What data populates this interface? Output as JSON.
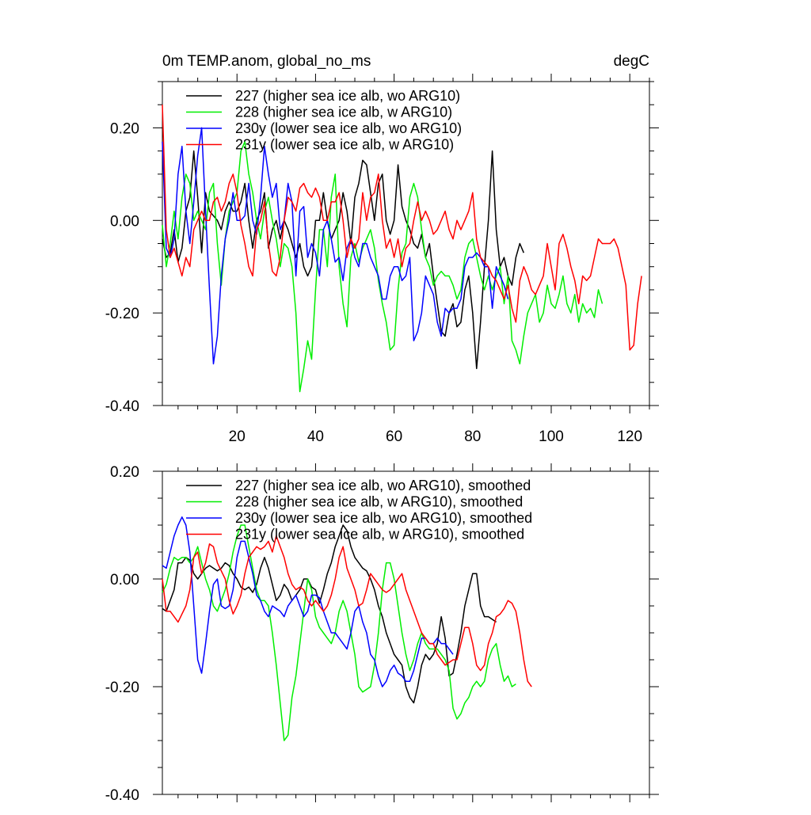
{
  "chart_data": [
    {
      "type": "line",
      "title": "0m TEMP.anom, global_no_ms",
      "units": "degC",
      "xlim": [
        1,
        125
      ],
      "ylim": [
        -0.4,
        0.3
      ],
      "x_ticks": [
        20,
        40,
        60,
        80,
        100,
        120
      ],
      "x_tick_labels": [
        "20",
        "40",
        "60",
        "80",
        "100",
        "120"
      ],
      "y_ticks": [
        -0.4,
        -0.2,
        0.0,
        0.2
      ],
      "y_tick_labels": [
        "-0.40",
        "-0.20",
        "0.00",
        "0.20"
      ],
      "grid": false,
      "legend_position": "top-left",
      "series": [
        {
          "name": "227 (higher sea ice alb, wo ARG10)",
          "color": "#000000",
          "x_start": 1,
          "values": [
            -0.04,
            -0.08,
            -0.07,
            -0.02,
            -0.09,
            -0.06,
            0.02,
            0.05,
            0.15,
            0.05,
            -0.07,
            0.06,
            0.02,
            0.01,
            0.0,
            -0.02,
            0.02,
            0.04,
            0.02,
            0.02,
            0.04,
            0.08,
            0.0,
            -0.06,
            0.0,
            0.02,
            0.06,
            -0.06,
            -0.02,
            0.0,
            -0.04,
            0.0,
            -0.02,
            -0.05,
            -0.08,
            -0.05,
            -0.1,
            -0.12,
            -0.1,
            0.0,
            0.0,
            0.06,
            0.0,
            -0.04,
            -0.02,
            0.0,
            0.06,
            0.02,
            -0.05,
            0.05,
            0.08,
            0.13,
            0.12,
            0.06,
            0.0,
            0.08,
            0.1,
            0.0,
            -0.03,
            0.0,
            0.12,
            0.03,
            0.0,
            -0.02,
            -0.05,
            -0.06,
            -0.03,
            -0.08,
            -0.05,
            -0.12,
            -0.18,
            -0.24,
            -0.25,
            -0.2,
            -0.18,
            -0.23,
            -0.22,
            -0.15,
            -0.12,
            -0.2,
            -0.32,
            -0.22,
            -0.1,
            0.0,
            0.15,
            -0.02,
            -0.1,
            -0.08,
            -0.12,
            -0.14,
            -0.08,
            -0.05,
            -0.07
          ]
        },
        {
          "name": "228 (higher sea ice alb, w ARG10)",
          "color": "#00ee00",
          "x_start": 1,
          "values": [
            -0.01,
            -0.1,
            -0.05,
            0.02,
            -0.04,
            0.05,
            0.1,
            0.08,
            0.0,
            0.02,
            0.0,
            -0.02,
            0.06,
            0.08,
            -0.05,
            -0.14,
            -0.04,
            0.02,
            0.04,
            0.06,
            0.15,
            0.17,
            0.1,
            0.06,
            0.0,
            -0.04,
            0.02,
            0.05,
            0.0,
            -0.04,
            -0.1,
            -0.05,
            -0.06,
            -0.1,
            -0.2,
            -0.37,
            -0.32,
            -0.26,
            -0.3,
            -0.15,
            -0.02,
            -0.02,
            -0.1,
            0.05,
            0.1,
            -0.1,
            -0.18,
            -0.23,
            -0.08,
            -0.05,
            -0.09,
            -0.06,
            -0.04,
            -0.02,
            -0.06,
            -0.13,
            -0.18,
            -0.22,
            -0.28,
            -0.27,
            -0.15,
            -0.07,
            -0.05,
            0.05,
            0.08,
            0.05,
            -0.02,
            -0.08,
            -0.1,
            -0.14,
            -0.12,
            -0.11,
            -0.12,
            -0.12,
            -0.14,
            -0.17,
            -0.15,
            -0.08,
            -0.05,
            -0.04,
            -0.08,
            -0.12,
            -0.15,
            -0.12,
            -0.15,
            -0.12,
            -0.1,
            -0.18,
            -0.12,
            -0.26,
            -0.28,
            -0.31,
            -0.25,
            -0.2,
            -0.18,
            -0.16,
            -0.22,
            -0.2,
            -0.14,
            -0.18,
            -0.19,
            -0.16,
            -0.12,
            -0.18,
            -0.2,
            -0.16,
            -0.22,
            -0.18,
            -0.2,
            -0.19,
            -0.21,
            -0.15,
            -0.18
          ]
        },
        {
          "name": "230y (lower sea ice alb, wo ARG10)",
          "color": "#0000ff",
          "x_start": 1,
          "values": [
            0.17,
            -0.06,
            -0.08,
            -0.04,
            0.1,
            0.16,
            0.02,
            -0.05,
            0.04,
            0.14,
            0.2,
            0.02,
            -0.15,
            -0.31,
            -0.25,
            -0.12,
            -0.04,
            0.0,
            0.06,
            0.0,
            0.0,
            0.01,
            0.08,
            0.0,
            -0.03,
            0.05,
            0.16,
            0.1,
            0.05,
            0.08,
            -0.02,
            0.0,
            0.08,
            0.04,
            -0.12,
            0.02,
            0.03,
            -0.08,
            -0.05,
            -0.07,
            -0.12,
            -0.02,
            0.0,
            -0.04,
            -0.09,
            -0.08,
            -0.13,
            -0.06,
            -0.04,
            -0.08,
            -0.1,
            -0.05,
            -0.05,
            -0.08,
            -0.1,
            -0.12,
            -0.17,
            -0.17,
            -0.12,
            -0.1,
            -0.1,
            -0.13,
            -0.12,
            -0.08,
            -0.26,
            -0.24,
            -0.2,
            -0.12,
            -0.14,
            -0.16,
            -0.22,
            -0.25,
            -0.19,
            -0.2,
            -0.19,
            -0.19,
            -0.17,
            -0.1,
            -0.08,
            -0.08,
            -0.07,
            -0.08,
            -0.1,
            -0.1,
            -0.19,
            -0.1,
            -0.12,
            -0.14,
            -0.17
          ]
        },
        {
          "name": "231y (lower sea ice alb, w ARG10)",
          "color": "#ff0000",
          "x_start": 1,
          "values": [
            0.25,
            -0.02,
            -0.08,
            -0.06,
            -0.09,
            -0.12,
            -0.08,
            -0.1,
            -0.02,
            0.0,
            0.02,
            0.0,
            0.0,
            0.04,
            0.05,
            0.02,
            0.04,
            0.08,
            0.1,
            0.06,
            -0.01,
            -0.05,
            -0.1,
            -0.12,
            -0.02,
            0.0,
            0.04,
            -0.05,
            -0.11,
            -0.12,
            -0.08,
            0.0,
            0.05,
            0.04,
            0.02,
            0.07,
            0.08,
            0.06,
            0.05,
            0.07,
            0.05,
            0.0,
            0.0,
            0.04,
            0.04,
            0.06,
            0.0,
            -0.08,
            -0.04,
            -0.06,
            -0.04,
            0.06,
            0.0,
            0.05,
            0.06,
            0.1,
            0.0,
            -0.06,
            -0.04,
            -0.08,
            -0.04,
            -0.1,
            -0.06,
            -0.05,
            0.0,
            0.04,
            0.0,
            0.02,
            0.0,
            -0.03,
            -0.02,
            0.0,
            0.02,
            -0.02,
            -0.04,
            0.0,
            -0.02,
            0.0,
            0.02,
            0.06,
            -0.04,
            -0.08,
            -0.09,
            -0.1,
            -0.12,
            -0.13,
            -0.15,
            -0.17,
            -0.14,
            -0.19,
            -0.22,
            -0.13,
            -0.1,
            -0.12,
            -0.15,
            -0.16,
            -0.14,
            -0.12,
            -0.05,
            -0.1,
            -0.15,
            -0.05,
            -0.03,
            -0.06,
            -0.1,
            -0.13,
            -0.18,
            -0.12,
            -0.13,
            -0.12,
            -0.08,
            -0.04,
            -0.05,
            -0.05,
            -0.05,
            -0.04,
            -0.06,
            -0.1,
            -0.14,
            -0.28,
            -0.27,
            -0.18,
            -0.12
          ]
        }
      ]
    },
    {
      "type": "line",
      "xlim": [
        1,
        125
      ],
      "ylim": [
        -0.4,
        0.2
      ],
      "x_ticks": [
        20,
        40,
        60,
        80,
        100,
        120
      ],
      "y_ticks": [
        -0.4,
        -0.2,
        0.0,
        0.2
      ],
      "y_tick_labels": [
        "-0.40",
        "-0.20",
        "0.00",
        "0.20"
      ],
      "grid": false,
      "legend_position": "top-left",
      "series": [
        {
          "name": "227 (higher sea ice alb, wo ARG10), smoothed",
          "color": "#000000",
          "x_start": 1,
          "values": [
            -0.055,
            -0.06,
            -0.04,
            -0.02,
            0.03,
            0.03,
            0.04,
            0.035,
            0.01,
            0.0,
            0.01,
            0.02,
            0.025,
            0.02,
            0.015,
            0.02,
            0.03,
            0.025,
            0.01,
            0.0,
            -0.015,
            -0.02,
            -0.015,
            -0.025,
            -0.01,
            0.02,
            0.04,
            0.02,
            -0.01,
            -0.04,
            -0.03,
            -0.01,
            -0.02,
            -0.04,
            -0.03,
            -0.02,
            0.0,
            0.0,
            -0.015,
            -0.02,
            -0.045,
            -0.02,
            0.01,
            0.03,
            0.06,
            0.08,
            0.1,
            0.09,
            0.06,
            0.04,
            0.03,
            0.02,
            0.015,
            0.0,
            -0.02,
            -0.05,
            -0.07,
            -0.1,
            -0.12,
            -0.14,
            -0.15,
            -0.16,
            -0.2,
            -0.22,
            -0.23,
            -0.2,
            -0.16,
            -0.14,
            -0.15,
            -0.14,
            -0.12,
            -0.07,
            -0.11,
            -0.18,
            -0.175,
            -0.14,
            -0.1,
            -0.05,
            -0.02,
            0.01,
            0.01,
            -0.05,
            -0.07,
            -0.07,
            -0.075,
            -0.08
          ]
        },
        {
          "name": "228 (higher sea ice alb, w ARG10), smoothed",
          "color": "#00ee00",
          "x_start": 1,
          "values": [
            -0.025,
            -0.01,
            0.02,
            0.04,
            0.035,
            0.04,
            0.04,
            0.03,
            0.04,
            0.06,
            0.03,
            0.0,
            -0.02,
            -0.05,
            -0.06,
            -0.04,
            -0.02,
            0.01,
            0.05,
            0.08,
            0.1,
            0.1,
            0.06,
            0.02,
            -0.02,
            -0.04,
            -0.04,
            -0.05,
            -0.1,
            -0.16,
            -0.23,
            -0.3,
            -0.29,
            -0.22,
            -0.18,
            -0.12,
            -0.06,
            0.0,
            -0.02,
            -0.07,
            -0.09,
            -0.1,
            -0.11,
            -0.12,
            -0.1,
            -0.06,
            -0.04,
            -0.06,
            -0.1,
            -0.14,
            -0.2,
            -0.21,
            -0.205,
            -0.2,
            -0.16,
            -0.1,
            -0.02,
            0.03,
            0.03,
            0.0,
            -0.05,
            -0.1,
            -0.14,
            -0.17,
            -0.15,
            -0.12,
            -0.1,
            -0.12,
            -0.13,
            -0.13,
            -0.13,
            -0.14,
            -0.15,
            -0.17,
            -0.24,
            -0.26,
            -0.25,
            -0.23,
            -0.22,
            -0.2,
            -0.19,
            -0.2,
            -0.19,
            -0.15,
            -0.13,
            -0.12,
            -0.16,
            -0.19,
            -0.18,
            -0.2,
            -0.195
          ]
        },
        {
          "name": "230y (lower sea ice alb, wo ARG10), smoothed",
          "color": "#0000ff",
          "x_start": 1,
          "values": [
            0.025,
            0.02,
            0.05,
            0.08,
            0.1,
            0.115,
            0.1,
            0.05,
            -0.05,
            -0.15,
            -0.175,
            -0.12,
            -0.06,
            -0.01,
            0.0,
            -0.05,
            -0.055,
            -0.05,
            -0.02,
            0.04,
            0.07,
            0.07,
            0.04,
            0.01,
            -0.03,
            -0.04,
            -0.06,
            -0.07,
            -0.05,
            -0.055,
            -0.06,
            -0.07,
            -0.05,
            -0.04,
            -0.03,
            -0.05,
            -0.07,
            -0.06,
            -0.03,
            -0.03,
            -0.035,
            -0.06,
            -0.08,
            -0.1,
            -0.1,
            -0.11,
            -0.12,
            -0.13,
            -0.1,
            -0.06,
            -0.05,
            -0.08,
            -0.1,
            -0.14,
            -0.15,
            -0.18,
            -0.2,
            -0.19,
            -0.17,
            -0.16,
            -0.175,
            -0.18,
            -0.19,
            -0.19,
            -0.17,
            -0.14,
            -0.11,
            -0.11,
            -0.12,
            -0.12,
            -0.11,
            -0.12,
            -0.12,
            -0.13,
            -0.14
          ]
        },
        {
          "name": "231y (lower sea ice alb, w ARG10), smoothed",
          "color": "#ff0000",
          "x_start": 1,
          "values": [
            0.0,
            -0.06,
            -0.06,
            -0.07,
            -0.08,
            -0.065,
            -0.05,
            -0.02,
            0.04,
            0.05,
            0.01,
            0.03,
            0.065,
            0.06,
            0.03,
            0.015,
            0.0,
            -0.04,
            -0.065,
            -0.05,
            -0.03,
            0.01,
            0.04,
            0.05,
            0.06,
            0.055,
            0.06,
            0.07,
            0.05,
            0.08,
            0.06,
            0.04,
            0.01,
            -0.01,
            -0.02,
            -0.015,
            -0.02,
            -0.04,
            -0.05,
            -0.04,
            -0.05,
            -0.06,
            -0.05,
            -0.03,
            0.0,
            0.04,
            0.06,
            0.02,
            0.0,
            -0.02,
            -0.05,
            -0.045,
            -0.02,
            0.01,
            0.0,
            -0.01,
            -0.02,
            -0.025,
            -0.02,
            -0.01,
            0.0,
            0.01,
            -0.02,
            -0.04,
            -0.06,
            -0.08,
            -0.1,
            -0.11,
            -0.12,
            -0.12,
            -0.14,
            -0.15,
            -0.16,
            -0.155,
            -0.15,
            -0.15,
            -0.12,
            -0.09,
            -0.09,
            -0.12,
            -0.16,
            -0.17,
            -0.16,
            -0.12,
            -0.1,
            -0.07,
            -0.065,
            -0.055,
            -0.04,
            -0.045,
            -0.06,
            -0.1,
            -0.15,
            -0.19,
            -0.2
          ]
        }
      ]
    }
  ]
}
